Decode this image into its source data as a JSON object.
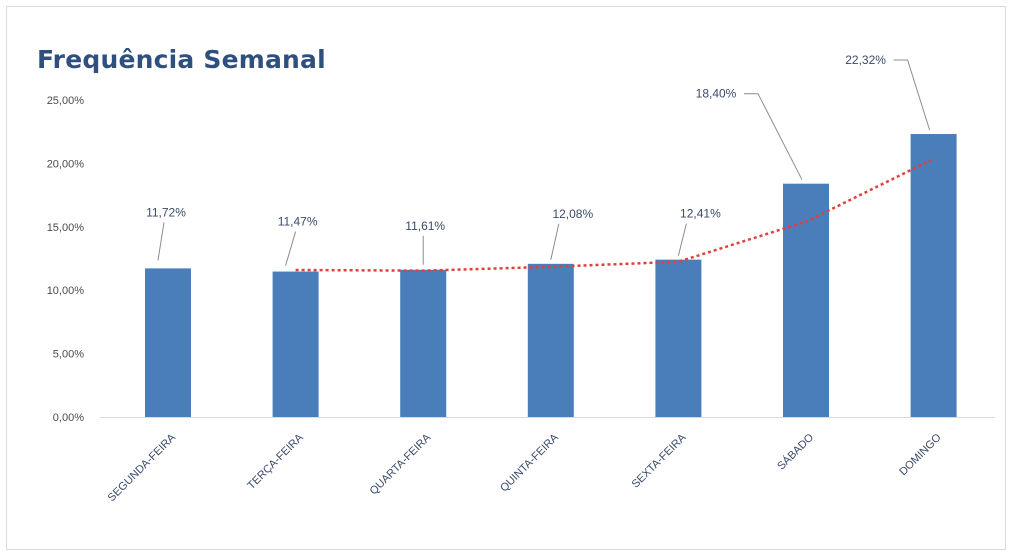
{
  "chart_data": {
    "type": "bar",
    "title": "Frequência Semanal",
    "categories": [
      "SEGUNDA-FEIRA",
      "TERÇA-FEIRA",
      "QUARTA-FEIRA",
      "QUINTA-FEIRA",
      "SEXTA-FEIRA",
      "SÁBADO",
      "DOMINGO"
    ],
    "values": [
      11.72,
      11.47,
      11.61,
      12.08,
      12.41,
      18.4,
      22.32
    ],
    "data_labels": [
      "11,72%",
      "11,47%",
      "11,61%",
      "12,08%",
      "12,41%",
      "18,40%",
      "22,32%"
    ],
    "ylim": [
      0,
      25
    ],
    "yticks": [
      0,
      5,
      10,
      15,
      20,
      25
    ],
    "ytick_labels": [
      "0,00%",
      "5,00%",
      "10,00%",
      "15,00%",
      "20,00%",
      "25,00%"
    ],
    "bar_color": "#4a7ebb",
    "trendline": {
      "type": "moving-average",
      "color": "#e0403a",
      "style": "dotted"
    },
    "grid": false,
    "legend": "none"
  }
}
